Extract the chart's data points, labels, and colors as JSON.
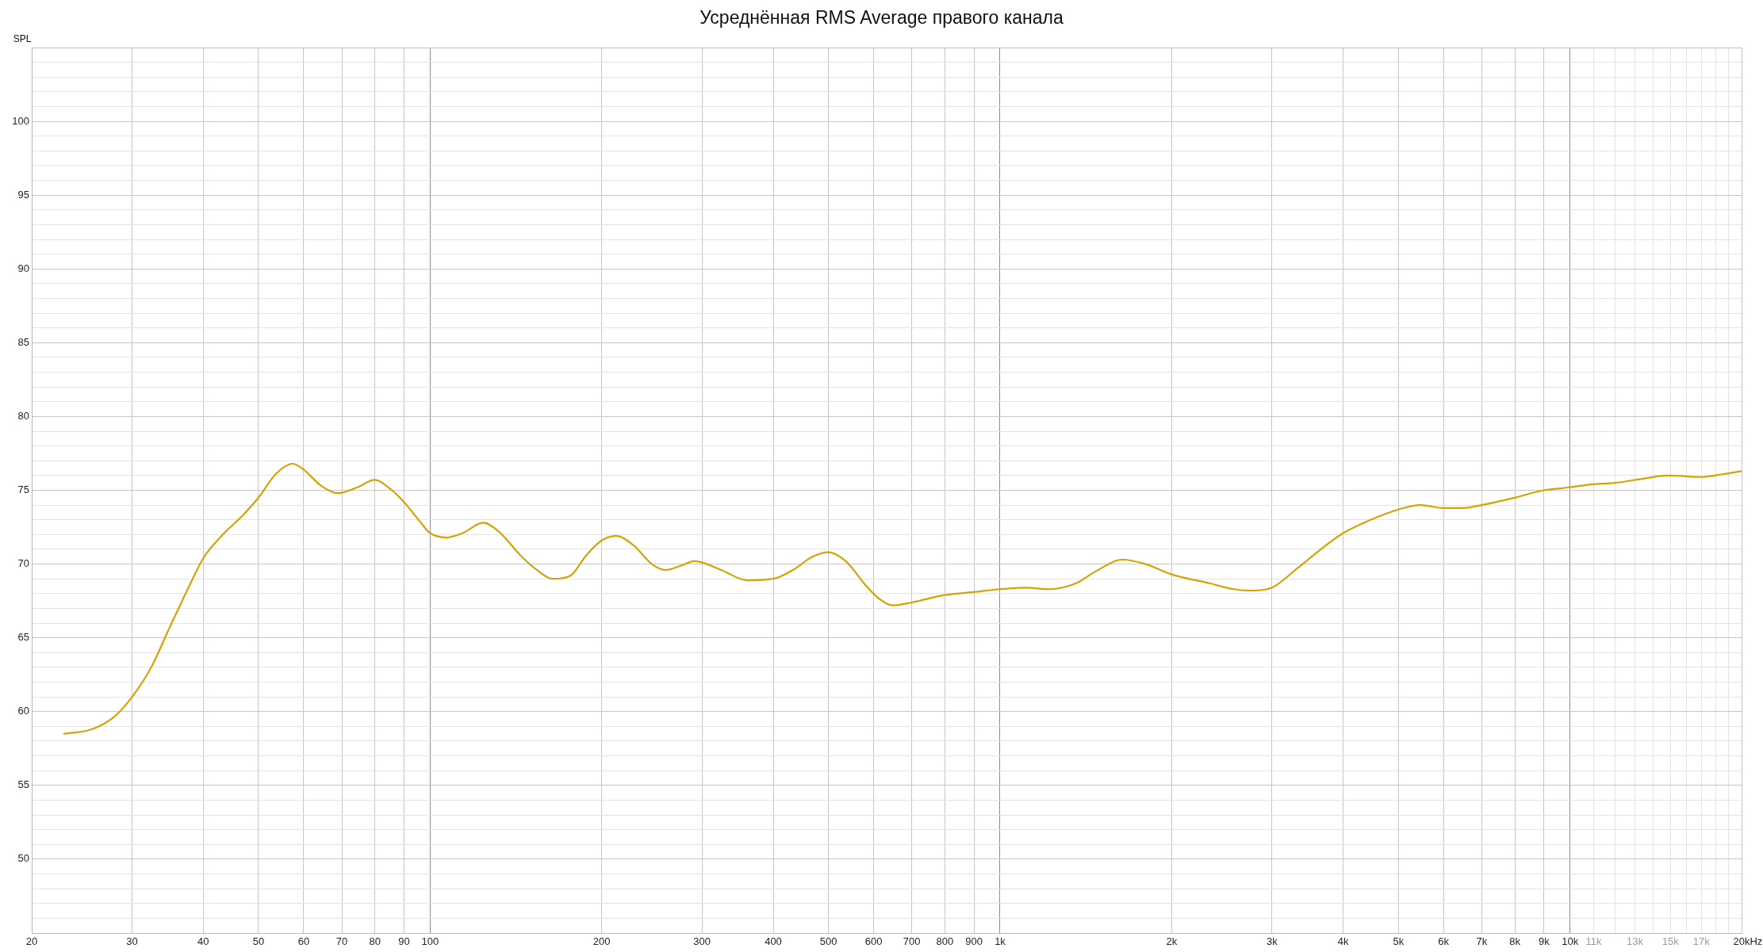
{
  "chart_data": {
    "type": "line",
    "title": "Усреднённая RMS Average правого канала",
    "xlabel": "Hz",
    "ylabel": "SPL",
    "log": "x",
    "grid": true,
    "marker": "none",
    "line_style": "solid",
    "color": "#d4a404",
    "x": [
      22.8,
      25.5,
      28,
      30,
      32.4,
      35.1,
      38,
      40,
      43.3,
      46.9,
      50,
      53.6,
      57.4,
      60,
      64.4,
      68.9,
      74.5,
      80,
      85.1,
      90,
      95.9,
      100,
      107,
      114,
      124,
      132,
      144,
      154,
      164,
      176,
      188,
      200,
      212,
      227,
      245,
      259,
      276,
      291,
      324,
      360,
      400,
      433,
      469,
      500,
      536,
      580,
      611,
      648,
      700,
      800,
      900,
      1000,
      1110,
      1220,
      1360,
      1470,
      1640,
      1800,
      2000,
      2330,
      2570,
      2780,
      3000,
      3320,
      3740,
      4000,
      4470,
      5000,
      5450,
      6000,
      6510,
      7000,
      8000,
      9000,
      10000,
      10900,
      12000,
      13000,
      14900,
      17000,
      18600,
      20000
    ],
    "values": [
      58.5,
      58.8,
      59.7,
      61.0,
      63.0,
      65.9,
      68.7,
      70.4,
      72.0,
      73.3,
      74.5,
      76.1,
      76.8,
      76.4,
      75.3,
      74.8,
      75.2,
      75.7,
      75.1,
      74.2,
      72.9,
      72.1,
      71.8,
      72.1,
      72.8,
      72.2,
      70.6,
      69.6,
      69.0,
      69.2,
      70.6,
      71.6,
      71.9,
      71.3,
      70.0,
      69.6,
      69.9,
      70.2,
      69.6,
      68.9,
      69.0,
      69.6,
      70.5,
      70.8,
      70.2,
      68.6,
      67.7,
      67.2,
      67.4,
      67.9,
      68.1,
      68.3,
      68.4,
      68.3,
      68.7,
      69.5,
      70.3,
      70.0,
      69.3,
      68.7,
      68.3,
      68.2,
      68.4,
      69.7,
      71.3,
      72.1,
      73.0,
      73.7,
      74.0,
      73.8,
      73.8,
      74.0,
      74.5,
      75.0,
      75.2,
      75.4,
      75.5,
      75.7,
      76.0,
      75.9,
      76.1,
      76.3
    ],
    "xlim": [
      20,
      20000
    ],
    "xticks": [
      20,
      30,
      40,
      50,
      60,
      70,
      80,
      90,
      100,
      200,
      300,
      400,
      500,
      600,
      700,
      800,
      900,
      {
        "value": 1000,
        "label": "1k"
      },
      {
        "value": 2000,
        "label": "2k"
      },
      {
        "value": 3000,
        "label": "3k"
      },
      {
        "value": 4000,
        "label": "4k"
      },
      {
        "value": 5000,
        "label": "5k"
      },
      {
        "value": 6000,
        "label": "6k"
      },
      {
        "value": 7000,
        "label": "7k"
      },
      {
        "value": 8000,
        "label": "8k"
      },
      {
        "value": 9000,
        "label": "9k"
      },
      {
        "value": 10000,
        "label": "10k"
      },
      {
        "value": 11000,
        "label": "11k"
      },
      {
        "value": 12000,
        "label": null
      },
      {
        "value": 13000,
        "label": "13k"
      },
      {
        "value": 14000,
        "label": null
      },
      {
        "value": 15000,
        "label": "15k"
      },
      {
        "value": 16000,
        "label": null
      },
      {
        "value": 17000,
        "label": "17k"
      },
      {
        "value": 18000,
        "label": null
      },
      {
        "value": 19000,
        "label": null
      },
      {
        "value": 20000,
        "label": "20k"
      }
    ],
    "ylim": [
      45,
      105
    ],
    "yticks": [
      {
        "value": 45,
        "label": null
      },
      {
        "value": 46,
        "label": null
      },
      {
        "value": 47,
        "label": null
      },
      {
        "value": 48,
        "label": null
      },
      {
        "value": 49,
        "label": null
      },
      50,
      {
        "value": 51,
        "label": null
      },
      {
        "value": 52,
        "label": null
      },
      {
        "value": 53,
        "label": null
      },
      {
        "value": 54,
        "label": null
      },
      55,
      {
        "value": 56,
        "label": null
      },
      {
        "value": 57,
        "label": null
      },
      {
        "value": 58,
        "label": null
      },
      {
        "value": 59,
        "label": null
      },
      60,
      {
        "value": 61,
        "label": null
      },
      {
        "value": 62,
        "label": null
      },
      {
        "value": 63,
        "label": null
      },
      {
        "value": 64,
        "label": null
      },
      65,
      {
        "value": 66,
        "label": null
      },
      {
        "value": 67,
        "label": null
      },
      {
        "value": 68,
        "label": null
      },
      {
        "value": 69,
        "label": null
      },
      70,
      {
        "value": 71,
        "label": null
      },
      {
        "value": 72,
        "label": null
      },
      {
        "value": 73,
        "label": null
      },
      {
        "value": 74,
        "label": null
      },
      75,
      {
        "value": 76,
        "label": null
      },
      {
        "value": 77,
        "label": null
      },
      {
        "value": 78,
        "label": null
      },
      {
        "value": 79,
        "label": null
      },
      80,
      {
        "value": 81,
        "label": null
      },
      {
        "value": 82,
        "label": null
      },
      {
        "value": 83,
        "label": null
      },
      {
        "value": 84,
        "label": null
      },
      85,
      {
        "value": 86,
        "label": null
      },
      {
        "value": 87,
        "label": null
      },
      {
        "value": 88,
        "label": null
      },
      {
        "value": 89,
        "label": null
      },
      90,
      {
        "value": 91,
        "label": null
      },
      {
        "value": 92,
        "label": null
      },
      {
        "value": 93,
        "label": null
      },
      {
        "value": 94,
        "label": null
      },
      95,
      {
        "value": 96,
        "label": null
      },
      {
        "value": 97,
        "label": null
      },
      {
        "value": 98,
        "label": null
      },
      {
        "value": 99,
        "label": null
      },
      100,
      {
        "value": 101,
        "label": null
      },
      {
        "value": 102,
        "label": null
      },
      {
        "value": 103,
        "label": null
      },
      {
        "value": 104,
        "label": null
      },
      {
        "value": 105,
        "label": null
      }
    ]
  }
}
